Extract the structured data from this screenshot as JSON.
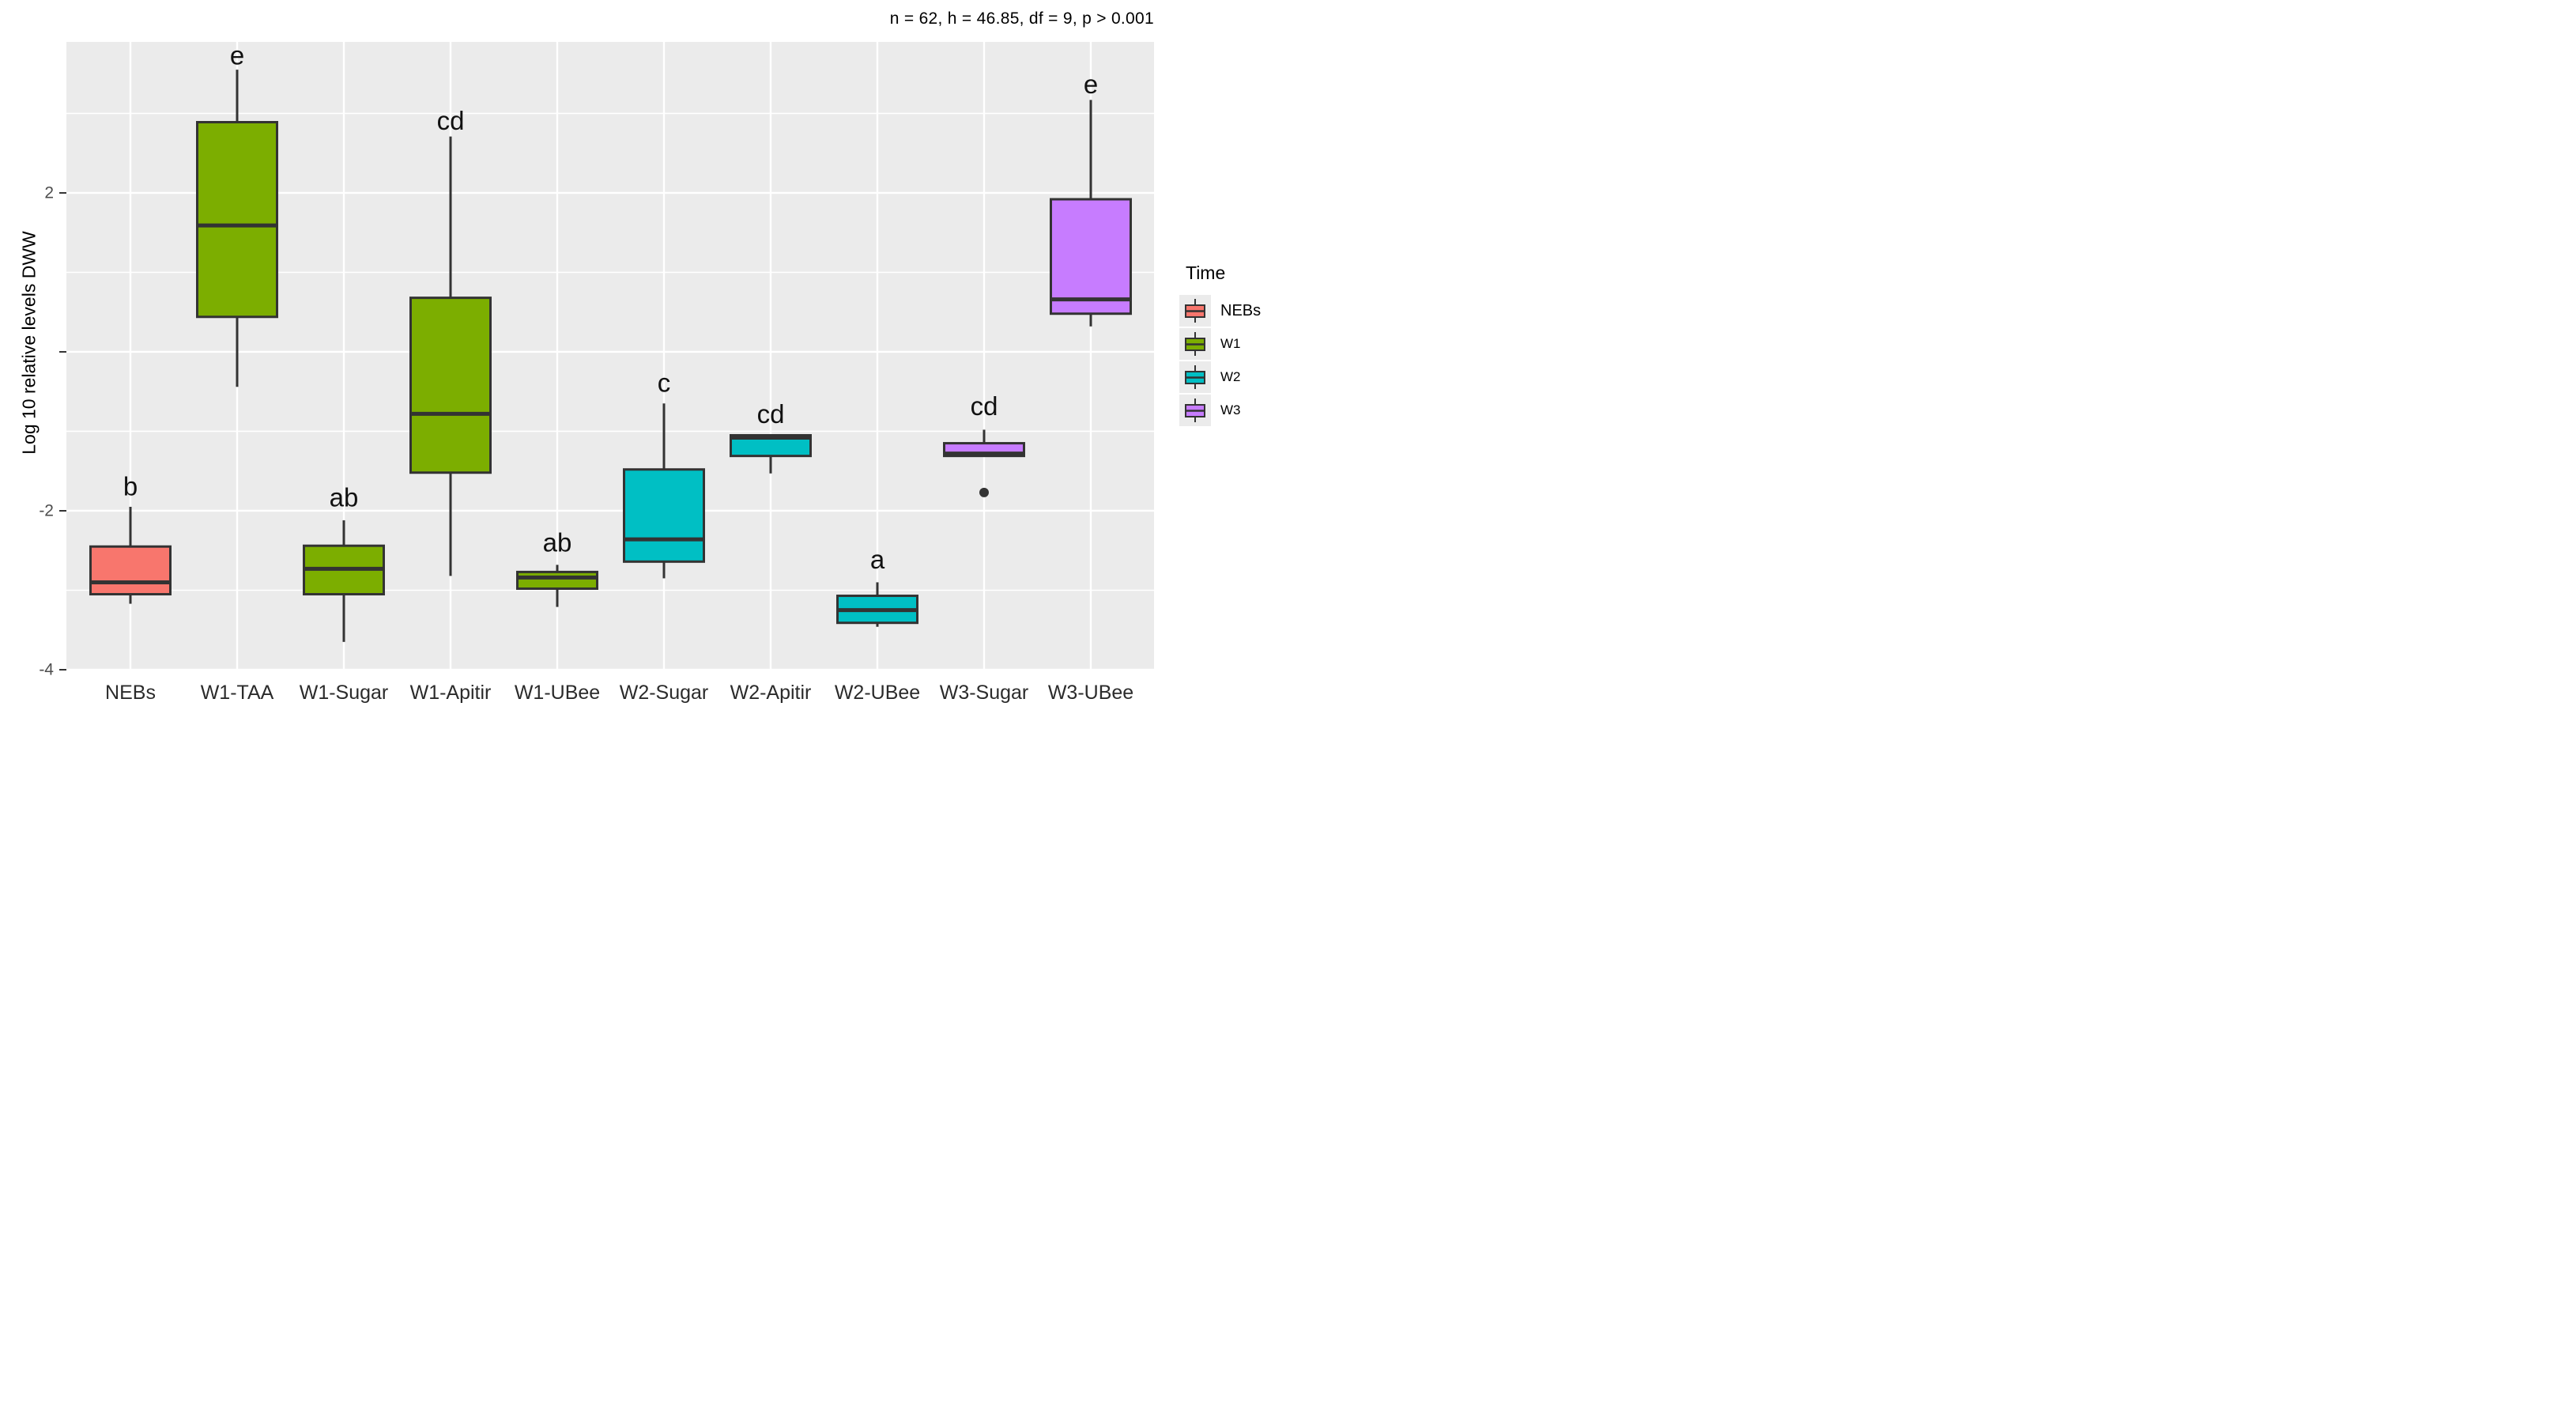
{
  "chart_data": {
    "type": "boxplot",
    "annotation": "n = 62, h = 46.85, df = 9, p > 0.001",
    "ylabel": "Log 10 relative levels DWW",
    "xlabel": "",
    "ylim": [
      -4.0,
      3.9
    ],
    "y_major_ticks": [
      {
        "value": 2,
        "label": "2"
      },
      {
        "value": 0,
        "label": ""
      },
      {
        "value": -2,
        "label": "-2"
      },
      {
        "value": -4,
        "label": "-4"
      }
    ],
    "y_minor_gridlines": [
      3,
      1,
      -1,
      -3
    ],
    "grid": {
      "panel_bg": "#ebebeb",
      "gridline_color": "#ffffff",
      "major_on": true,
      "minor_on": true
    },
    "categories": [
      "NEBs",
      "W1-TAA",
      "W1-Sugar",
      "W1-Apitir",
      "W1-UBee",
      "W2-Sugar",
      "W2-Apitir",
      "W2-UBee",
      "W3-Sugar",
      "W3-UBee"
    ],
    "legend": {
      "title": "Time",
      "position": "right",
      "entries": [
        {
          "label": "NEBs",
          "color": "#F8766D"
        },
        {
          "label": "W1",
          "color": "#7CAE00"
        },
        {
          "label": "W2",
          "color": "#00BFC4"
        },
        {
          "label": "W3",
          "color": "#C77CFF"
        }
      ]
    },
    "groups": [
      {
        "category": "NEBs",
        "time": "NEBs",
        "color": "#F8766D",
        "letter": "b",
        "letter_y": -1.69,
        "whisker_high": -1.95,
        "q3": -2.45,
        "median": -2.9,
        "q1": -3.05,
        "whisker_low": -3.17,
        "outliers": []
      },
      {
        "category": "W1-TAA",
        "time": "W1",
        "color": "#7CAE00",
        "letter": "e",
        "letter_y": 3.73,
        "whisker_high": 3.55,
        "q3": 2.89,
        "median": 1.59,
        "q1": 0.44,
        "whisker_low": -0.44,
        "outliers": []
      },
      {
        "category": "W1-Sugar",
        "time": "W1",
        "color": "#7CAE00",
        "letter": "ab",
        "letter_y": -1.83,
        "whisker_high": -2.12,
        "q3": -2.44,
        "median": -2.73,
        "q1": -3.05,
        "whisker_low": -3.65,
        "outliers": []
      },
      {
        "category": "W1-Apitir",
        "time": "W1",
        "color": "#7CAE00",
        "letter": "cd",
        "letter_y": 2.91,
        "whisker_high": 2.71,
        "q3": 0.68,
        "median": -0.78,
        "q1": -1.52,
        "whisker_low": -2.82,
        "outliers": []
      },
      {
        "category": "W1-UBee",
        "time": "W1",
        "color": "#7CAE00",
        "letter": "ab",
        "letter_y": -2.4,
        "whisker_high": -2.68,
        "q3": -2.77,
        "median": -2.84,
        "q1": -2.98,
        "whisker_low": -3.21,
        "outliers": []
      },
      {
        "category": "W2-Sugar",
        "time": "W2",
        "color": "#00BFC4",
        "letter": "c",
        "letter_y": -0.39,
        "whisker_high": -0.65,
        "q3": -1.48,
        "median": -2.36,
        "q1": -2.64,
        "whisker_low": -2.85,
        "outliers": []
      },
      {
        "category": "W2-Apitir",
        "time": "W2",
        "color": "#00BFC4",
        "letter": "cd",
        "letter_y": -0.78,
        "whisker_high": -1.05,
        "q3": -1.05,
        "median": -1.08,
        "q1": -1.31,
        "whisker_low": -1.53,
        "outliers": []
      },
      {
        "category": "W2-UBee",
        "time": "W2",
        "color": "#00BFC4",
        "letter": "a",
        "letter_y": -2.61,
        "whisker_high": -2.9,
        "q3": -3.07,
        "median": -3.25,
        "q1": -3.41,
        "whisker_low": -3.46,
        "outliers": []
      },
      {
        "category": "W3-Sugar",
        "time": "W3",
        "color": "#C77CFF",
        "letter": "cd",
        "letter_y": -0.68,
        "whisker_high": -0.98,
        "q3": -1.15,
        "median": -1.28,
        "q1": -1.31,
        "whisker_low": -1.31,
        "outliers": [
          -1.77
        ]
      },
      {
        "category": "W3-UBee",
        "time": "W3",
        "color": "#C77CFF",
        "letter": "e",
        "letter_y": 3.37,
        "whisker_high": 3.17,
        "q3": 1.92,
        "median": 0.66,
        "q1": 0.48,
        "whisker_low": 0.32,
        "outliers": []
      }
    ],
    "style": {
      "box_stroke": "#333333",
      "axis_text_color": "#4d4d4d",
      "x_label_color": "#2b2b2b",
      "letter_color": "#111111"
    }
  }
}
